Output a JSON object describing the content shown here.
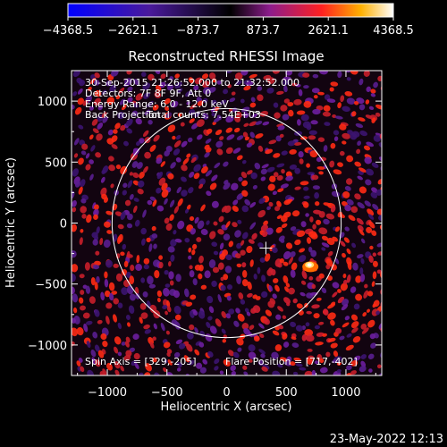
{
  "chart_data": {
    "type": "heatmap",
    "title": "Reconstructed RHESSI Image",
    "xlabel": "Heliocentric X (arcsec)",
    "ylabel": "Heliocentric Y (arcsec)",
    "xlim": [
      -1300,
      1300
    ],
    "ylim": [
      -1250,
      1250
    ],
    "x_ticks": [
      -1000,
      -500,
      0,
      500,
      1000
    ],
    "x_tick_labels": [
      "−1000",
      "−500",
      "0",
      "500",
      "1000"
    ],
    "y_ticks": [
      -1000,
      -500,
      0,
      500,
      1000
    ],
    "y_tick_labels": [
      "−1000",
      "−500",
      "0",
      "500",
      "1000"
    ],
    "colorbar": {
      "ticks": [
        -4368.5,
        -2621.1,
        -873.7,
        873.7,
        2621.1,
        4368.5
      ],
      "tick_labels": [
        "−4368.5",
        "−2621.1",
        "−873.7",
        "873.7",
        "2621.1",
        "4368.5"
      ],
      "range": [
        -4368.5,
        4368.5
      ]
    },
    "annotations": {
      "time_range": "30-Sep-2015 21:26:52.000 to 21:32:52.000",
      "detectors": "Detectors: 7F 8F 9F, Att 0",
      "energy_range": "Energy Range: 6.0 - 12.0 keV",
      "method": "Back Projection",
      "total_counts": "Total counts: 7.54E+03",
      "spin_axis": "Spin Axis = [329,-205]",
      "flare_position": "Flare Position = [717,-402]"
    },
    "solar_limb_radius": 960,
    "spin_axis_marker": [
      329,
      -205
    ],
    "flare_source": [
      717,
      -402
    ],
    "grid": false,
    "legend": "none"
  },
  "footer": {
    "timestamp": "23-May-2022 12:13"
  }
}
